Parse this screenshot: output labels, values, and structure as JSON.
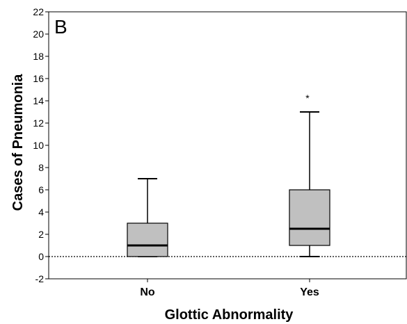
{
  "panel_label": "B",
  "chart_data": {
    "type": "boxplot",
    "xlabel": "Glottic Abnormality",
    "ylabel": "Cases of Pneumonia",
    "ylim": [
      -2,
      22
    ],
    "yticks": [
      -2,
      0,
      2,
      4,
      6,
      8,
      10,
      12,
      14,
      16,
      18,
      20,
      22
    ],
    "ytick_labels": [
      "-2",
      "0",
      "2",
      "4",
      "6",
      "8",
      "10",
      "12",
      "14",
      "16",
      "18",
      "20",
      "22"
    ],
    "categories": [
      "No",
      "Yes"
    ],
    "boxes": [
      {
        "category": "No",
        "whisker_low": 0,
        "q1": 0,
        "median": 1,
        "q3": 3,
        "whisker_high": 7,
        "outliers": []
      },
      {
        "category": "Yes",
        "whisker_low": 0,
        "q1": 1,
        "median": 2.5,
        "q3": 6,
        "whisker_high": 13,
        "outliers": [
          14.3
        ]
      }
    ],
    "outlier_marker": "*",
    "reference_line": {
      "y": 0,
      "style": "dotted"
    },
    "box_fill": "#c0c0c0",
    "grid": false
  }
}
